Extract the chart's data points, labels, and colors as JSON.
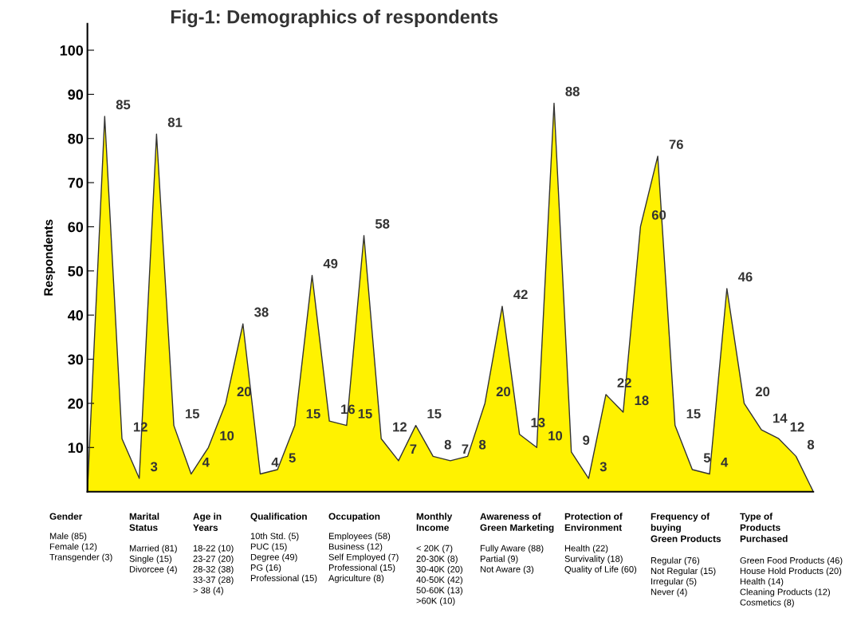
{
  "chart_data": {
    "type": "area",
    "title": "Fig-1: Demographics of respondents",
    "ylabel": "Respondents",
    "categories": [
      null,
      null,
      null,
      null,
      null,
      null,
      null,
      null,
      null,
      null,
      null,
      null,
      null,
      null,
      null,
      null,
      null,
      null,
      null,
      null,
      null,
      null,
      null,
      null,
      null,
      null,
      null,
      null,
      null,
      null,
      null,
      null,
      null,
      null,
      null,
      null,
      null,
      null,
      null,
      null,
      null,
      null,
      null
    ],
    "series": [
      {
        "color": "#fff200",
        "values": [
          0,
          85,
          12,
          3,
          81,
          15,
          4,
          10,
          20,
          38,
          4,
          5,
          15,
          49,
          16,
          15,
          58,
          12,
          7,
          15,
          8,
          7,
          8,
          20,
          42,
          13,
          10,
          88,
          9,
          3,
          22,
          18,
          60,
          76,
          15,
          5,
          4,
          46,
          20,
          14,
          12,
          8,
          0
        ],
        "value_labels": [
          null,
          "85",
          "12",
          "3",
          "81",
          "15",
          "4",
          "10",
          "20",
          "38",
          "4",
          "5",
          "15",
          "49",
          "16",
          "15",
          "58",
          "12",
          "7",
          "15",
          "8",
          "7",
          "8",
          "20",
          "42",
          "13",
          "10",
          "88",
          "9",
          "3",
          "22",
          "18",
          "60",
          "76",
          "15",
          "5",
          "4",
          "46",
          "20",
          "14",
          "12",
          "8",
          null
        ]
      }
    ],
    "ylim": [
      0,
      106
    ],
    "yticks": [
      10,
      20,
      30,
      40,
      50,
      60,
      70,
      80,
      90,
      100
    ],
    "grid": false,
    "tick_labels": "y",
    "annotations": [
      "Gender\n\nMale (85)\nFemale (12)\nTransgender (3)",
      "Marital\nStatus\n\nMarried (81)\nSingle (15)\nDivorcee (4)",
      "Age in\nYears\n\n18-22 (10)\n23-27 (20)\n28-32 (38)\n33-37 (28)\n> 38 (4)",
      "Qualification\n\n10th Std. (5)\nPUC (15)\nDegree (49)\nPG (16)\nProfessional (15)",
      "Occupation\n\nEmployees (58)\nBusiness (12)\nSelf Employed (7)\nProfessional (15)\nAgriculture (8)",
      "Monthly\nIncome\n\n< 20K (7)\n20-30K (8)\n30-40K (20)\n40-50K (42)\n50-60K (13)\n>60K (10)",
      "Awareness of\nGreen Marketing\n\nFully Aware (88)\nPartial (9)\nNot Aware (3)",
      "Protection of\nEnvironment\n\nHealth (22)\nSurvivality (18)\nQuality of Life (60)",
      "Frequency of\nbuying\nGreen Products\n\nRegular (76)\nNot Regular (15)\nIrregular (5)\nNever (4)",
      "Type of\nProducts\nPurchased\n\nGreen Food Products (46)\nHouse Hold Products (20)\nHealth (14)\nCleaning Products (12)\nCosmetics (8)"
    ]
  }
}
